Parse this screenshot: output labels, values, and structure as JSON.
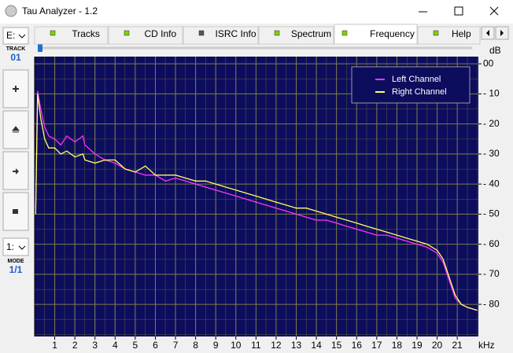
{
  "window": {
    "title": "Tau Analyzer - 1.2"
  },
  "sidebar": {
    "drive": "E:",
    "track_label": "TRACK",
    "track": "01",
    "mode_select": "1:",
    "mode_label": "MODE",
    "mode": "1/1"
  },
  "tabs": [
    "Tracks",
    "CD Info",
    "ISRC Info",
    "Spectrum",
    "Frequency",
    "Help"
  ],
  "active_tab": 4,
  "chart_data": {
    "type": "line",
    "y_unit": "dB",
    "x_unit": "kHz",
    "x": [
      0.05,
      0.15,
      0.3,
      0.5,
      0.7,
      1.0,
      1.3,
      1.6,
      2.0,
      2.4,
      2.5,
      3.0,
      3.5,
      4.0,
      4.5,
      5.0,
      5.5,
      6.0,
      6.5,
      7.0,
      7.5,
      8.0,
      8.5,
      9.0,
      9.5,
      10.0,
      10.5,
      11.0,
      11.5,
      12.0,
      12.5,
      13.0,
      13.5,
      14.0,
      14.5,
      15.0,
      15.5,
      16.0,
      16.5,
      17.0,
      17.5,
      18.0,
      18.5,
      19.0,
      19.5,
      20.0,
      20.3,
      20.6,
      20.9,
      21.2,
      21.5,
      22.0
    ],
    "series": [
      {
        "name": "Left Channel",
        "color": "#ff33ff",
        "values": [
          -48,
          -9,
          -15,
          -21,
          -24,
          -25,
          -27,
          -24,
          -26,
          -24,
          -27,
          -30,
          -32,
          -33,
          -35,
          -36,
          -37,
          -37,
          -39,
          -38,
          -39,
          -40,
          -41,
          -42,
          -43,
          -44,
          -45,
          -46,
          -47,
          -48,
          -49,
          -50,
          -51,
          -52,
          -52,
          -53,
          -54,
          -55,
          -56,
          -57,
          -57,
          -58,
          -59,
          -60,
          -61,
          -63,
          -66,
          -72,
          -78,
          -80,
          -81,
          -82
        ]
      },
      {
        "name": "Right Channel",
        "color": "#ffff66",
        "values": [
          -50,
          -10,
          -18,
          -25,
          -28,
          -28,
          -30,
          -29,
          -31,
          -30,
          -32,
          -33,
          -32,
          -32,
          -35,
          -36,
          -34,
          -37,
          -37,
          -37,
          -38,
          -39,
          -39,
          -40,
          -41,
          -42,
          -43,
          -44,
          -45,
          -46,
          -47,
          -48,
          -48,
          -49,
          -50,
          -51,
          -52,
          -53,
          -54,
          -55,
          -56,
          -57,
          -58,
          -59,
          -60,
          -62,
          -65,
          -71,
          -77,
          -80,
          -81,
          -82
        ]
      }
    ],
    "xlim": [
      0,
      22.05
    ],
    "ylim": [
      -90.7,
      2.4
    ],
    "xticks": [
      1,
      2,
      3,
      4,
      5,
      6,
      7,
      8,
      9,
      10,
      11,
      12,
      13,
      14,
      15,
      16,
      17,
      18,
      19,
      20,
      21
    ],
    "yticks": [
      {
        "value": 0,
        "label": "00"
      },
      {
        "value": -10,
        "label": "- 10"
      },
      {
        "value": -20,
        "label": "- 20"
      },
      {
        "value": -30,
        "label": "- 30"
      },
      {
        "value": -40,
        "label": "- 40"
      },
      {
        "value": -50,
        "label": "- 50"
      },
      {
        "value": -60,
        "label": "- 60"
      },
      {
        "value": -70,
        "label": "- 70"
      },
      {
        "value": -80,
        "label": "- 80"
      }
    ],
    "grid": true,
    "legend": "upper right",
    "background": "#0d0d5e",
    "grid_color": "#7d7d4a"
  }
}
